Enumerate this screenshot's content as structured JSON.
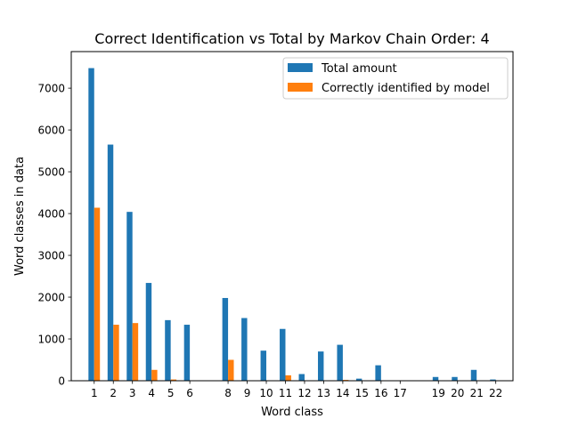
{
  "chart_data": {
    "type": "bar",
    "title": "Correct Identification vs Total by Markov Chain Order: 4",
    "xlabel": "Word class",
    "ylabel": "Word classes in data",
    "ylim": [
      0,
      7875
    ],
    "xlim": [
      -0.2,
      22.9
    ],
    "yticks": [
      0,
      1000,
      2000,
      3000,
      4000,
      5000,
      6000,
      7000
    ],
    "x": [
      1,
      2,
      3,
      4,
      5,
      6,
      8,
      9,
      10,
      11,
      12,
      13,
      14,
      15,
      16,
      17,
      19,
      20,
      21,
      22
    ],
    "categories": [
      "1",
      "2",
      "3",
      "4",
      "5",
      "6",
      "8",
      "9",
      "10",
      "11",
      "12",
      "13",
      "14",
      "15",
      "16",
      "17",
      "19",
      "20",
      "21",
      "22"
    ],
    "series": [
      {
        "name": "Total amount",
        "color": "#1f77b4",
        "values": [
          7480,
          5650,
          4040,
          2340,
          1450,
          1340,
          1980,
          1500,
          720,
          1240,
          160,
          700,
          860,
          50,
          370,
          0,
          90,
          90,
          260,
          30
        ]
      },
      {
        "name": "Correctly identified by model",
        "color": "#ff7f0e",
        "values": [
          4140,
          1340,
          1380,
          260,
          30,
          0,
          500,
          0,
          0,
          130,
          0,
          0,
          20,
          0,
          0,
          0,
          0,
          0,
          0,
          0
        ]
      }
    ],
    "grid": false,
    "legend_position": "top-right"
  }
}
